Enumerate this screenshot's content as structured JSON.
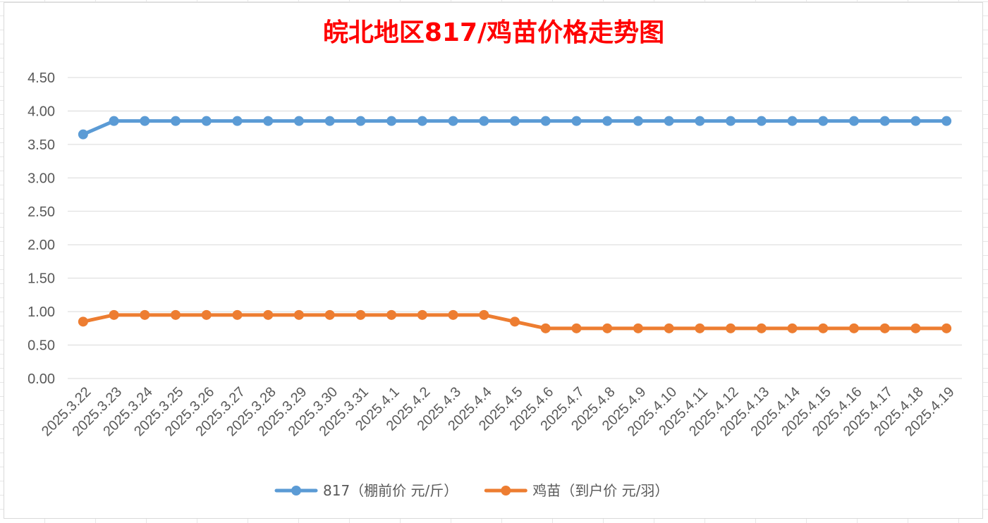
{
  "chart_data": {
    "type": "line",
    "title": "皖北地区817/鸡苗价格走势图",
    "xlabel": "",
    "ylabel": "",
    "ylim": [
      0,
      4.5
    ],
    "yticks": [
      "0.00",
      "0.50",
      "1.00",
      "1.50",
      "2.00",
      "2.50",
      "3.00",
      "3.50",
      "4.00",
      "4.50"
    ],
    "grid": true,
    "legend_position": "bottom",
    "categories": [
      "2025.3.22",
      "2025.3.23",
      "2025.3.24",
      "2025.3.25",
      "2025.3.26",
      "2025.3.27",
      "2025.3.28",
      "2025.3.29",
      "2025.3.30",
      "2025.3.31",
      "2025.4.1",
      "2025.4.2",
      "2025.4.3",
      "2025.4.4",
      "2025.4.5",
      "2025.4.6",
      "2025.4.7",
      "2025.4.8",
      "2025.4.9",
      "2025.4.10",
      "2025.4.11",
      "2025.4.12",
      "2025.4.13",
      "2025.4.14",
      "2025.4.15",
      "2025.4.16",
      "2025.4.17",
      "2025.4.18",
      "2025.4.19"
    ],
    "series": [
      {
        "name": "817（棚前价 元/斤）",
        "color": "#5b9bd5",
        "values": [
          3.65,
          3.85,
          3.85,
          3.85,
          3.85,
          3.85,
          3.85,
          3.85,
          3.85,
          3.85,
          3.85,
          3.85,
          3.85,
          3.85,
          3.85,
          3.85,
          3.85,
          3.85,
          3.85,
          3.85,
          3.85,
          3.85,
          3.85,
          3.85,
          3.85,
          3.85,
          3.85,
          3.85,
          3.85
        ]
      },
      {
        "name": "鸡苗（到户价 元/羽）",
        "color": "#ed7d31",
        "values": [
          0.85,
          0.95,
          0.95,
          0.95,
          0.95,
          0.95,
          0.95,
          0.95,
          0.95,
          0.95,
          0.95,
          0.95,
          0.95,
          0.95,
          0.85,
          0.75,
          0.75,
          0.75,
          0.75,
          0.75,
          0.75,
          0.75,
          0.75,
          0.75,
          0.75,
          0.75,
          0.75,
          0.75,
          0.75
        ]
      }
    ]
  }
}
